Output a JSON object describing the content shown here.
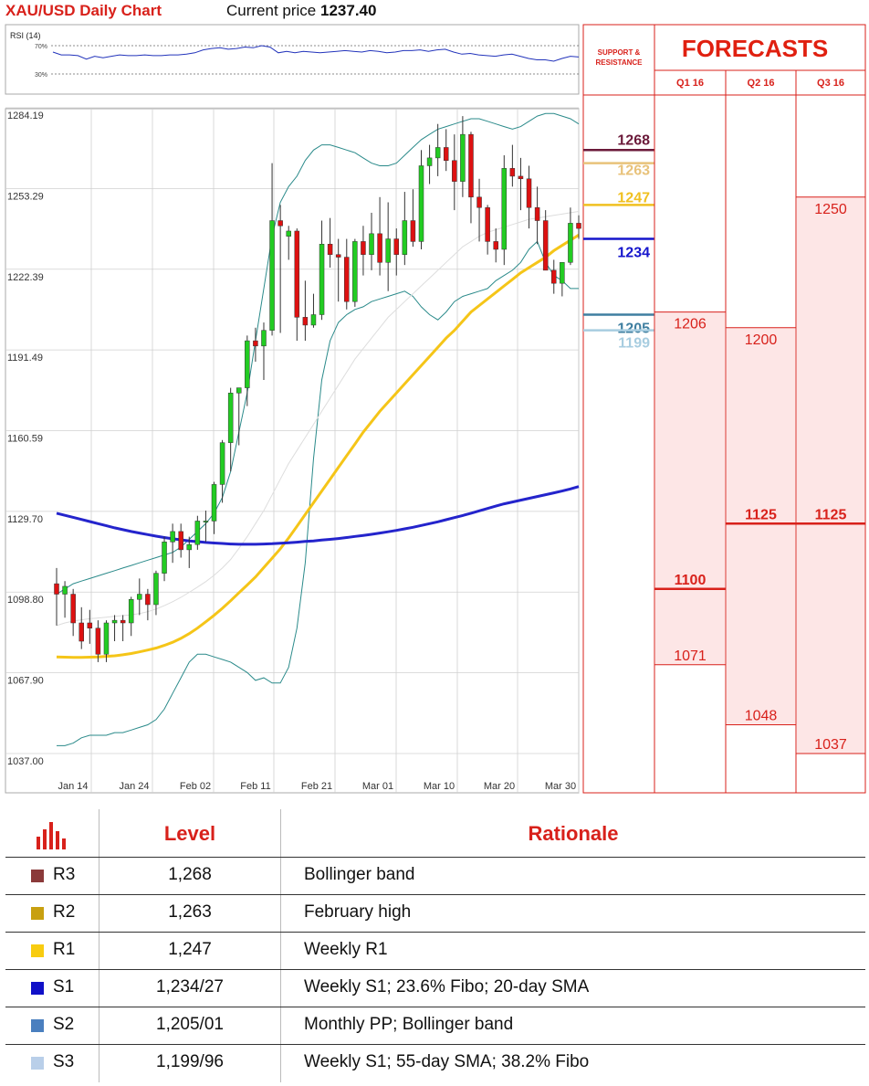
{
  "header": {
    "title": "XAU/USD Daily Chart",
    "price_label": "Current price",
    "price_value": "1237.40"
  },
  "rsi": {
    "label": "RSI (14)",
    "level_70": "70%",
    "level_30": "30%",
    "values": [
      61,
      57,
      57,
      56,
      51,
      55,
      53,
      55,
      57,
      56,
      56,
      57,
      56,
      56,
      57,
      57,
      58,
      60,
      64,
      66,
      67,
      65,
      66,
      68,
      67,
      70,
      68,
      60,
      62,
      60,
      62,
      61,
      60,
      61,
      62,
      63,
      62,
      61,
      63,
      62,
      60,
      61,
      63,
      63,
      64,
      62,
      64,
      65,
      61,
      58,
      59,
      57,
      56,
      55,
      57,
      58,
      55,
      52,
      50,
      50,
      48,
      52,
      55,
      54
    ]
  },
  "chart_data": {
    "type": "candlestick",
    "title": "XAU/USD Daily Chart",
    "ylim": [
      1037,
      1284.19
    ],
    "y_ticks": [
      "1284.19",
      "1253.29",
      "1222.39",
      "1191.49",
      "1160.59",
      "1129.70",
      "1098.80",
      "1067.90",
      "1037.00"
    ],
    "x_ticks": [
      "Jan 14",
      "Jan 24",
      "Feb 02",
      "Feb 11",
      "Feb 21",
      "Mar 01",
      "Mar 10",
      "Mar 20",
      "Mar 30"
    ],
    "ohlc": [
      [
        1102,
        1108,
        1086,
        1098
      ],
      [
        1098,
        1103,
        1089,
        1101
      ],
      [
        1098,
        1100,
        1082,
        1087
      ],
      [
        1087,
        1093,
        1077,
        1080
      ],
      [
        1087,
        1092,
        1079,
        1085
      ],
      [
        1085,
        1088,
        1072,
        1075
      ],
      [
        1075,
        1088,
        1072,
        1087
      ],
      [
        1087,
        1090,
        1080,
        1088
      ],
      [
        1088,
        1090,
        1080,
        1087
      ],
      [
        1087,
        1097,
        1082,
        1096
      ],
      [
        1096,
        1104,
        1090,
        1098
      ],
      [
        1098,
        1100,
        1088,
        1094
      ],
      [
        1094,
        1107,
        1090,
        1106
      ],
      [
        1106,
        1120,
        1103,
        1118
      ],
      [
        1118,
        1125,
        1110,
        1122
      ],
      [
        1122,
        1125,
        1112,
        1115
      ],
      [
        1115,
        1120,
        1108,
        1117
      ],
      [
        1117,
        1128,
        1115,
        1126
      ],
      [
        1126,
        1130,
        1118,
        1126
      ],
      [
        1126,
        1141,
        1121,
        1140
      ],
      [
        1140,
        1157,
        1133,
        1156
      ],
      [
        1156,
        1177,
        1145,
        1175
      ],
      [
        1175,
        1177,
        1155,
        1177
      ],
      [
        1177,
        1197,
        1170,
        1195
      ],
      [
        1195,
        1200,
        1187,
        1193
      ],
      [
        1193,
        1202,
        1180,
        1199
      ],
      [
        1199,
        1263,
        1197,
        1241
      ],
      [
        1241,
        1247,
        1198,
        1239
      ],
      [
        1235,
        1239,
        1226,
        1237
      ],
      [
        1237,
        1238,
        1195,
        1204
      ],
      [
        1204,
        1218,
        1195,
        1201
      ],
      [
        1201,
        1213,
        1200,
        1205
      ],
      [
        1205,
        1241,
        1203,
        1232
      ],
      [
        1232,
        1242,
        1223,
        1228
      ],
      [
        1228,
        1234,
        1210,
        1227
      ],
      [
        1227,
        1234,
        1207,
        1210
      ],
      [
        1210,
        1234,
        1208,
        1233
      ],
      [
        1233,
        1239,
        1220,
        1228
      ],
      [
        1228,
        1244,
        1222,
        1236
      ],
      [
        1236,
        1250,
        1220,
        1225
      ],
      [
        1225,
        1248,
        1214,
        1234
      ],
      [
        1234,
        1238,
        1220,
        1228
      ],
      [
        1228,
        1252,
        1224,
        1241
      ],
      [
        1241,
        1253,
        1231,
        1233
      ],
      [
        1233,
        1268,
        1230,
        1262
      ],
      [
        1262,
        1270,
        1255,
        1265
      ],
      [
        1265,
        1278,
        1258,
        1269
      ],
      [
        1269,
        1276,
        1260,
        1264
      ],
      [
        1264,
        1274,
        1245,
        1256
      ],
      [
        1256,
        1281,
        1250,
        1274
      ],
      [
        1274,
        1275,
        1240,
        1250
      ],
      [
        1250,
        1257,
        1233,
        1246
      ],
      [
        1246,
        1247,
        1228,
        1233
      ],
      [
        1233,
        1238,
        1225,
        1230
      ],
      [
        1230,
        1266,
        1224,
        1261
      ],
      [
        1261,
        1270,
        1254,
        1258
      ],
      [
        1258,
        1265,
        1245,
        1257
      ],
      [
        1257,
        1262,
        1238,
        1246
      ],
      [
        1246,
        1254,
        1232,
        1241
      ],
      [
        1241,
        1245,
        1222,
        1222
      ],
      [
        1222,
        1226,
        1213,
        1217
      ],
      [
        1217,
        1225,
        1212,
        1225
      ],
      [
        1225,
        1246,
        1224,
        1240
      ],
      [
        1240,
        1243,
        1234,
        1238
      ]
    ],
    "sma_200": [
      1129,
      1128.2,
      1127.4,
      1126.6,
      1125.8,
      1125,
      1124.2,
      1123.4,
      1122.7,
      1122,
      1121.4,
      1120.8,
      1120.2,
      1119.7,
      1119.2,
      1118.8,
      1118.4,
      1118.1,
      1117.8,
      1117.6,
      1117.4,
      1117.2,
      1117.1,
      1117.1,
      1117.1,
      1117.2,
      1117.3,
      1117.5,
      1117.7,
      1117.9,
      1118.2,
      1118.4,
      1118.7,
      1119,
      1119.3,
      1119.7,
      1120.1,
      1120.5,
      1120.9,
      1121.4,
      1121.9,
      1122.4,
      1123,
      1123.6,
      1124.3,
      1125,
      1125.7,
      1126.5,
      1127.3,
      1128.1,
      1129,
      1129.9,
      1130.8,
      1131.7,
      1132.6,
      1133.3,
      1134,
      1134.7,
      1135.4,
      1136.1,
      1136.8,
      1137.5,
      1138.3,
      1139.2
    ],
    "sma_55": [
      1074,
      1073.9,
      1073.8,
      1073.8,
      1073.9,
      1074,
      1074.2,
      1074.4,
      1074.8,
      1075.3,
      1075.9,
      1076.6,
      1077.4,
      1078.4,
      1079.6,
      1081.1,
      1082.9,
      1085,
      1087.4,
      1089.9,
      1092.6,
      1095.5,
      1098.5,
      1101.5,
      1104.6,
      1108.2,
      1111.8,
      1115.4,
      1119.5,
      1124,
      1128.5,
      1133,
      1137.5,
      1142,
      1146.5,
      1151,
      1155.5,
      1160,
      1164,
      1168,
      1171.5,
      1175,
      1178.5,
      1182,
      1185.5,
      1189,
      1192.5,
      1196,
      1199,
      1202.5,
      1206,
      1208.5,
      1211,
      1213.5,
      1216,
      1218.5,
      1221,
      1223,
      1225,
      1227,
      1229.5,
      1231.5,
      1233.5,
      1235.5
    ],
    "sma_20": [
      1086,
      1087,
      1087.7,
      1088.2,
      1088.6,
      1088.9,
      1089.2,
      1089.5,
      1089.8,
      1090.1,
      1090.6,
      1091.3,
      1092.3,
      1093.6,
      1095.1,
      1096.8,
      1098.7,
      1100.7,
      1102.8,
      1105.2,
      1108,
      1111.3,
      1115.5,
      1120,
      1125,
      1130,
      1136,
      1142,
      1148,
      1153,
      1158,
      1163,
      1168,
      1173,
      1178,
      1183,
      1188,
      1192,
      1196,
      1200,
      1204,
      1207,
      1210,
      1213,
      1216,
      1219,
      1222,
      1225,
      1228,
      1231,
      1233,
      1235,
      1236.5,
      1237.5,
      1238.5,
      1239.5,
      1240.5,
      1241.5,
      1242,
      1242.5,
      1243,
      1243.5,
      1244,
      1244.5
    ],
    "bb_upper": [
      1098,
      1100,
      1102,
      1103,
      1104,
      1105,
      1106,
      1107,
      1108,
      1109,
      1110,
      1111,
      1112,
      1113,
      1114,
      1116,
      1119,
      1122,
      1125,
      1129,
      1135,
      1145,
      1160,
      1175,
      1195,
      1215,
      1235,
      1248,
      1254,
      1258,
      1264,
      1268,
      1270,
      1270,
      1269,
      1268,
      1267,
      1265,
      1263,
      1262,
      1262,
      1263,
      1266,
      1269,
      1272,
      1274,
      1276,
      1277,
      1278,
      1279,
      1280,
      1280,
      1279,
      1278,
      1277,
      1276,
      1277,
      1279,
      1281,
      1282,
      1282,
      1281,
      1280,
      1278
    ],
    "bb_lower": [
      1040,
      1040,
      1041,
      1043,
      1044,
      1044,
      1044,
      1045,
      1045,
      1046,
      1047,
      1048,
      1050,
      1054,
      1060,
      1066,
      1072,
      1075,
      1075,
      1074,
      1073,
      1072,
      1070,
      1068,
      1065,
      1066,
      1064,
      1064,
      1070,
      1085,
      1110,
      1150,
      1180,
      1195,
      1202,
      1205,
      1207,
      1208,
      1210,
      1211,
      1212,
      1213,
      1214,
      1212,
      1208,
      1205,
      1203,
      1206,
      1210,
      1212,
      1213,
      1214,
      1215,
      1218,
      1220,
      1222,
      1225,
      1230,
      1233,
      1225,
      1220,
      1218,
      1215,
      1215
    ]
  },
  "levels_panel": {
    "label_line1": "SUPPORT &",
    "label_line2": "RESISTANCE",
    "levels": [
      {
        "label": "1268",
        "value": 1268,
        "color": "#6b1a3a"
      },
      {
        "label": "1263",
        "value": 1263,
        "color": "#e8c27a"
      },
      {
        "label": "1247",
        "value": 1247,
        "color": "#f0c020"
      },
      {
        "label": "1234",
        "value": 1234,
        "color": "#1515cc"
      },
      {
        "label": "1205",
        "value": 1205,
        "color": "#3f7fa0"
      },
      {
        "label": "1199",
        "value": 1199,
        "color": "#a8cde0"
      }
    ]
  },
  "forecasts": {
    "title": "FORECASTS",
    "quarters": [
      {
        "label": "Q1 16",
        "high": "1206",
        "high_v": 1206,
        "mid": "1100",
        "mid_v": 1100,
        "low": "1071",
        "low_v": 1071
      },
      {
        "label": "Q2 16",
        "high": "1200",
        "high_v": 1200,
        "mid": "1125",
        "mid_v": 1125,
        "low": "1048",
        "low_v": 1048
      },
      {
        "label": "Q3 16",
        "high": "1250",
        "high_v": 1250,
        "mid": "1125",
        "mid_v": 1125,
        "low": "1037",
        "low_v": 1037
      }
    ]
  },
  "table": {
    "headers": {
      "level": "Level",
      "rationale": "Rationale"
    },
    "rows": [
      {
        "code": "R3",
        "level": "1,268",
        "rationale": "Bollinger band",
        "color": "#8b3a3a"
      },
      {
        "code": "R2",
        "level": "1,263",
        "rationale": "February high",
        "color": "#c8a010"
      },
      {
        "code": "R1",
        "level": "1,247",
        "rationale": "Weekly R1",
        "color": "#f8cc10"
      },
      {
        "code": "S1",
        "level": "1,234/27",
        "rationale": "Weekly S1; 23.6% Fibo; 20-day SMA",
        "color": "#1010c8"
      },
      {
        "code": "S2",
        "level": "1,205/01",
        "rationale": "Monthly PP; Bollinger band",
        "color": "#4a7fbf"
      },
      {
        "code": "S3",
        "level": "1,199/96",
        "rationale": "Weekly S1; 55-day SMA; 38.2% Fibo",
        "color": "#b9cfe9"
      }
    ]
  }
}
